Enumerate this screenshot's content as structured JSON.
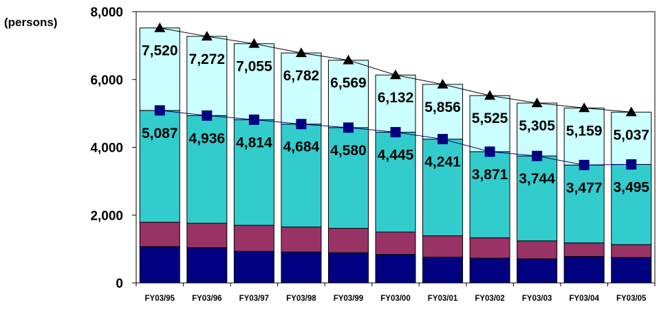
{
  "chart_data": {
    "type": "bar",
    "stacked": true,
    "y_unit_label": "(persons)",
    "categories": [
      "FY03/95",
      "FY03/96",
      "FY03/97",
      "FY03/98",
      "FY03/99",
      "FY03/00",
      "FY03/01",
      "FY03/02",
      "FY03/03",
      "FY03/04",
      "FY03/05"
    ],
    "ylim": [
      0,
      8000
    ],
    "yticks": [
      "0",
      "2,000",
      "4,000",
      "6,000",
      "8,000"
    ],
    "ytick_values": [
      0,
      2000,
      4000,
      6000,
      8000
    ],
    "grid": false,
    "series": [
      {
        "color": "#000080",
        "values": [
          1070,
          1040,
          930,
          910,
          890,
          840,
          760,
          730,
          710,
          780,
          750
        ]
      },
      {
        "color": "#993366",
        "values": [
          720,
          720,
          770,
          740,
          720,
          660,
          630,
          600,
          530,
          400,
          380
        ]
      },
      {
        "color": "#33CCCC",
        "values": [
          3297,
          3176,
          3114,
          3034,
          2970,
          2945,
          2851,
          2541,
          2504,
          2297,
          2365
        ]
      },
      {
        "color": "#CCFFFF",
        "values": [
          2433,
          2336,
          2241,
          2098,
          1989,
          1687,
          1615,
          1654,
          1561,
          1682,
          1542
        ]
      }
    ],
    "lines": [
      {
        "marker": "triangle",
        "color": "#000000",
        "values": [
          7520,
          7272,
          7055,
          6782,
          6569,
          6132,
          5856,
          5525,
          5305,
          5159,
          5037
        ],
        "labels": [
          "7,520",
          "7,272",
          "7,055",
          "6,782",
          "6,569",
          "6,132",
          "5,856",
          "5,525",
          "5,305",
          "5,159",
          "5,037"
        ]
      },
      {
        "marker": "square",
        "color": "#000080",
        "values": [
          5087,
          4936,
          4814,
          4684,
          4580,
          4445,
          4241,
          3871,
          3744,
          3477,
          3495
        ],
        "labels": [
          "5,087",
          "4,936",
          "4,814",
          "4,684",
          "4,580",
          "4,445",
          "4,241",
          "3,871",
          "3,744",
          "3,477",
          "3,495"
        ]
      }
    ]
  }
}
